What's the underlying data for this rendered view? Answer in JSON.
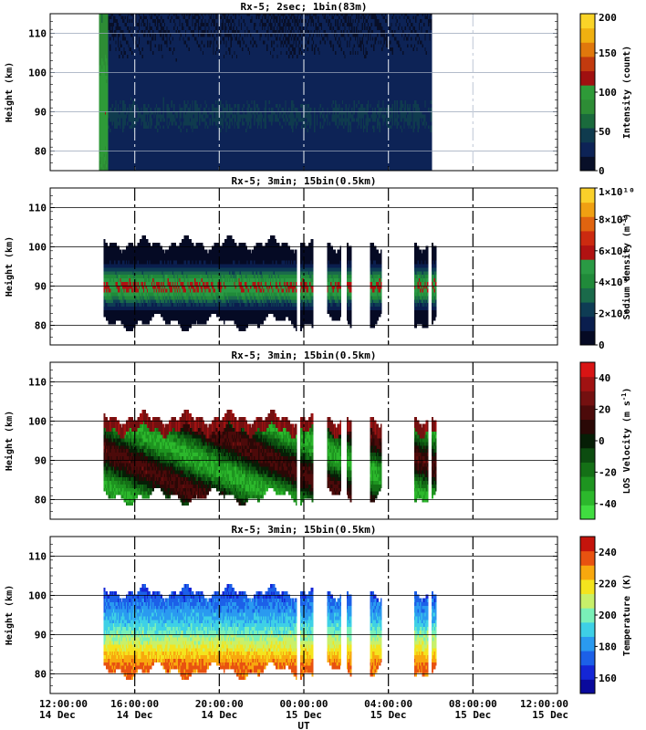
{
  "chart_data": [
    {
      "type": "heatmap",
      "title": "Rx-5;  2sec; 1bin(83m)",
      "ylabel": "Height (km)",
      "ylim": [
        75,
        115
      ],
      "yticks": [
        80,
        90,
        100,
        110
      ],
      "colorbar": {
        "label": "Intensity (count)",
        "range": [
          0,
          200
        ],
        "ticks": [
          {
            "v": 0,
            "t": "0"
          },
          {
            "v": 50,
            "t": "50"
          },
          {
            "v": 100,
            "t": "100"
          },
          {
            "v": 150,
            "t": "150"
          },
          {
            "v": 200,
            "t": "200"
          }
        ],
        "colors": [
          "#080f28",
          "#0d2356",
          "#0f3b4e",
          "#1a6a3c",
          "#2d8c35",
          "#2e9a38",
          "#a01010",
          "#c23a0e",
          "#e0780c",
          "#f0b010",
          "#fad428"
        ]
      },
      "data_window_hours": [
        14.5,
        30.0
      ],
      "mean_profile": [
        {
          "h": 80,
          "count": 20
        },
        {
          "h": 89,
          "count": 25
        },
        {
          "h": 110,
          "count": 15
        }
      ],
      "bright_band_hours": [
        14.3,
        14.7
      ],
      "bright_band_count": 100
    },
    {
      "type": "heatmap",
      "title": "Rx-5; 3min; 15bin(0.5km)",
      "ylabel": "Height (km)",
      "ylim": [
        75,
        115
      ],
      "yticks": [
        80,
        90,
        100,
        110
      ],
      "colorbar": {
        "label": "Sodium density (m^-3)",
        "range": [
          0,
          10000000000
        ],
        "ticks": [
          {
            "v": 0,
            "t": "0"
          },
          {
            "v": 2000000000,
            "t": "2×10⁹"
          },
          {
            "v": 4000000000,
            "t": "4×10⁹"
          },
          {
            "v": 6000000000,
            "t": "6×10⁹"
          },
          {
            "v": 8000000000,
            "t": "8×10⁹"
          },
          {
            "v": 10000000000,
            "t": "1×10¹⁰"
          }
        ],
        "colors": [
          "#050a24",
          "#0a1e4e",
          "#0e3c54",
          "#1a6a4a",
          "#208a3a",
          "#2a9a44",
          "#b01212",
          "#cc2a10",
          "#e06410",
          "#f0a012",
          "#fad02a"
        ]
      },
      "peak_region": {
        "height_km": 90,
        "value": 5500000000
      }
    },
    {
      "type": "heatmap",
      "title": "Rx-5; 3min; 15bin(0.5km)",
      "ylabel": "Height (km)",
      "ylim": [
        75,
        115
      ],
      "yticks": [
        80,
        90,
        100,
        110
      ],
      "colorbar": {
        "label": "LOS Velocity (m s^-1)",
        "range": [
          -50,
          50
        ],
        "ticks": [
          {
            "v": -40,
            "t": "-40"
          },
          {
            "v": -20,
            "t": "-20"
          },
          {
            "v": 0,
            "t": "0"
          },
          {
            "v": 20,
            "t": "20"
          },
          {
            "v": 40,
            "t": "40"
          }
        ],
        "colors": [
          "#40dc40",
          "#2cb82c",
          "#1e9420",
          "#147016",
          "#0c4c10",
          "#061e06",
          "#2a0806",
          "#4c0a0a",
          "#741010",
          "#a01212",
          "#d81414"
        ]
      },
      "top_region_value": 35
    },
    {
      "type": "heatmap",
      "title": "Rx-5; 3min; 15bin(0.5km)",
      "ylabel": "Height (km)",
      "ylim": [
        75,
        115
      ],
      "yticks": [
        80,
        90,
        100,
        110
      ],
      "colorbar": {
        "label": "Temperature (K)",
        "range": [
          150,
          250
        ],
        "ticks": [
          {
            "v": 160,
            "t": "160"
          },
          {
            "v": 180,
            "t": "180"
          },
          {
            "v": 200,
            "t": "200"
          },
          {
            "v": 220,
            "t": "220"
          },
          {
            "v": 240,
            "t": "240"
          }
        ],
        "colors": [
          "#0a0a9c",
          "#1426d6",
          "#1c60e8",
          "#2a9af0",
          "#3ed0e6",
          "#7af0b8",
          "#c8f06a",
          "#f4e41e",
          "#f8a80e",
          "#e85210",
          "#c4140c"
        ]
      },
      "temperature_profile": [
        {
          "h": 82,
          "K": 235
        },
        {
          "h": 88,
          "K": 210
        },
        {
          "h": 93,
          "K": 190
        },
        {
          "h": 100,
          "K": 170
        }
      ]
    }
  ],
  "x_axis": {
    "label": "UT",
    "xlim_hours": [
      12,
      36
    ],
    "ticks": [
      {
        "hour": 12,
        "time": "12:00:00",
        "date": "14 Dec"
      },
      {
        "hour": 16,
        "time": "16:00:00",
        "date": "14 Dec"
      },
      {
        "hour": 20,
        "time": "20:00:00",
        "date": "14 Dec"
      },
      {
        "hour": 24,
        "time": "00:00:00",
        "date": "15 Dec"
      },
      {
        "hour": 28,
        "time": "04:00:00",
        "date": "15 Dec"
      },
      {
        "hour": 32,
        "time": "08:00:00",
        "date": "15 Dec"
      },
      {
        "hour": 36,
        "time": "12:00:00",
        "date": "15 Dec"
      }
    ]
  },
  "observation_blocks_hours": [
    [
      14.5,
      15.85
    ],
    [
      15.85,
      16.35
    ],
    [
      16.35,
      17.55
    ],
    [
      17.55,
      18.3
    ],
    [
      18.3,
      19.55
    ],
    [
      19.55,
      20.3
    ],
    [
      20.3,
      22.35
    ],
    [
      22.35,
      23.65
    ],
    [
      23.8,
      24.4
    ],
    [
      25.05,
      25.7
    ],
    [
      26.0,
      26.2
    ],
    [
      27.1,
      27.65
    ],
    [
      29.2,
      29.85
    ],
    [
      30.0,
      30.25
    ]
  ]
}
